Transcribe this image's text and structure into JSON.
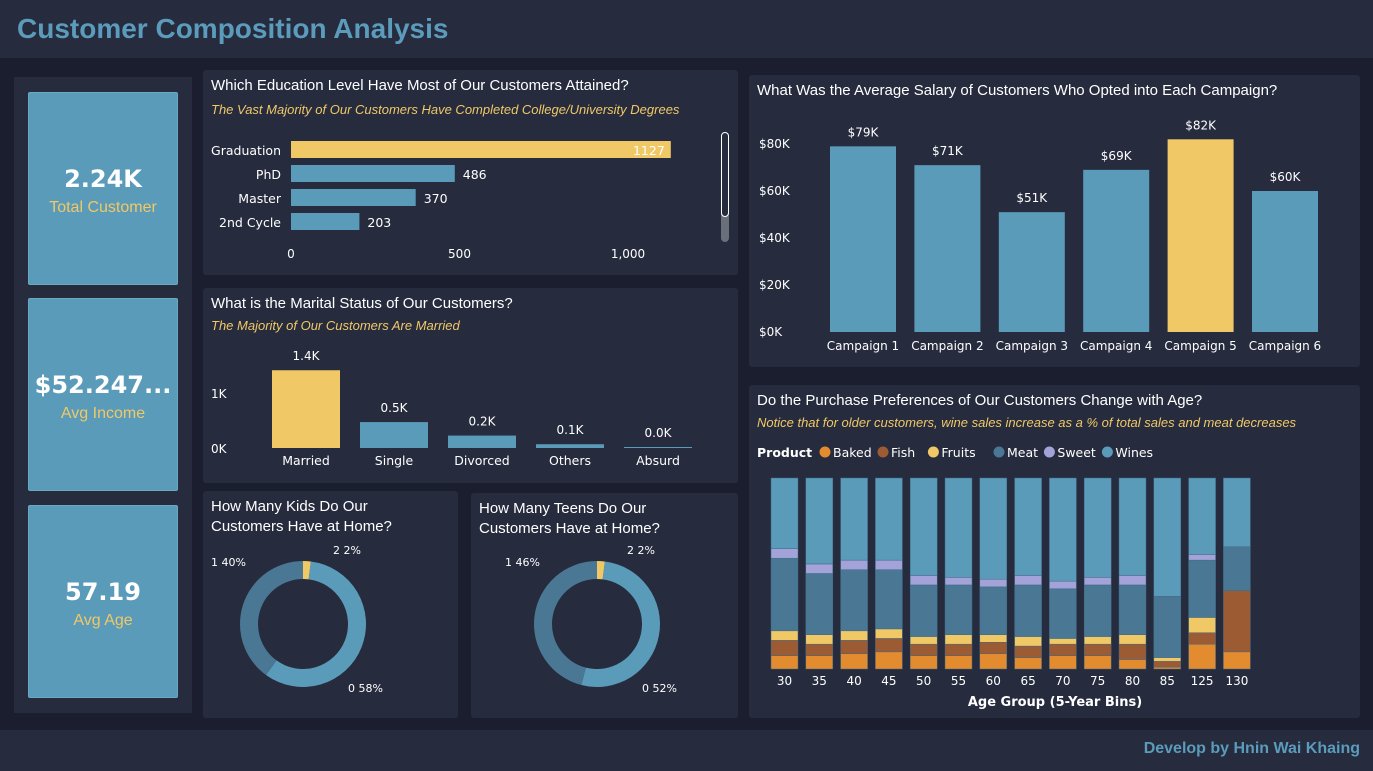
{
  "header": {
    "title": "Customer Composition Analysis"
  },
  "footer": {
    "credit": "Develop by Hnin Wai Khaing"
  },
  "colors": {
    "background": "#1b1e2f",
    "panel": "#262b3e",
    "blue": "#5b9bba",
    "dark_blue": "#4a7894",
    "yellow": "#f0c866",
    "title_blue": "#5b9bbb"
  },
  "kpis": [
    {
      "value": "2.24K",
      "label": "Total Customer"
    },
    {
      "value": "$52.247...",
      "label": "Avg Income"
    },
    {
      "value": "57.19",
      "label": "Avg Age"
    }
  ],
  "education": {
    "title": "Which Education Level Have Most of Our Customers Attained?",
    "subtitle": "The Vast Majority of Our Customers Have Completed College/University Degrees"
  },
  "marital": {
    "title": "What is the Marital Status of Our Customers?",
    "subtitle": "The Majority of Our Customers Are Married"
  },
  "kids": {
    "title": "How Many Kids Do Our Customers Have at Home?"
  },
  "teens": {
    "title": "How Many Teens Do Our Customers Have at Home?"
  },
  "salary": {
    "title": "What Was the Average Salary of Customers Who Opted into Each Campaign?"
  },
  "purchase": {
    "title": "Do the Purchase Preferences of Our Customers Change with Age?",
    "subtitle": "Notice that for older customers, wine sales increase as a % of total sales and meat decreases",
    "legend_title": "Product"
  },
  "chart_data": [
    {
      "id": "education",
      "type": "bar",
      "orientation": "horizontal",
      "categories": [
        "Graduation",
        "PhD",
        "Master",
        "2nd Cycle"
      ],
      "values": [
        1127,
        486,
        370,
        203
      ],
      "data_labels": [
        "1127",
        "486",
        "370",
        "203"
      ],
      "xlim": [
        0,
        1150
      ],
      "xticks": [
        "0",
        "500",
        "1,000"
      ],
      "xtick_values": [
        0,
        500,
        1000
      ],
      "highlight": "Graduation",
      "scrollbar": true
    },
    {
      "id": "marital",
      "type": "bar",
      "categories": [
        "Married",
        "Single",
        "Divorced",
        "Others",
        "Absurd"
      ],
      "values": [
        1.44,
        0.48,
        0.23,
        0.07,
        0.0
      ],
      "data_labels": [
        "1.4K",
        "0.5K",
        "0.2K",
        "0.1K",
        "0.0K"
      ],
      "yticks": [
        "0K",
        "1K"
      ],
      "ytick_values": [
        0,
        1
      ],
      "highlight": "Married"
    },
    {
      "id": "kids",
      "type": "pie",
      "donut": true,
      "slices": [
        {
          "label": "2",
          "value": 2,
          "text": "2 2%",
          "color": "#f0c866"
        },
        {
          "label": "0",
          "value": 58,
          "text": "0 58%",
          "color": "#5b9bba"
        },
        {
          "label": "1",
          "value": 40,
          "text": "1 40%",
          "color": "#4a7894"
        }
      ]
    },
    {
      "id": "teens",
      "type": "pie",
      "donut": true,
      "slices": [
        {
          "label": "2",
          "value": 2,
          "text": "2 2%",
          "color": "#f0c866"
        },
        {
          "label": "0",
          "value": 52,
          "text": "0 52%",
          "color": "#5b9bba"
        },
        {
          "label": "1",
          "value": 46,
          "text": "1 46%",
          "color": "#4a7894"
        }
      ]
    },
    {
      "id": "salary",
      "type": "bar",
      "categories": [
        "Campaign 1",
        "Campaign 2",
        "Campaign 3",
        "Campaign 4",
        "Campaign 5",
        "Campaign 6"
      ],
      "values": [
        79,
        71,
        51,
        69,
        82,
        60
      ],
      "data_labels": [
        "$79K",
        "$71K",
        "$51K",
        "$69K",
        "$82K",
        "$60K"
      ],
      "yticks": [
        "$0K",
        "$20K",
        "$40K",
        "$60K",
        "$80K"
      ],
      "ytick_values": [
        0,
        20,
        40,
        60,
        80
      ],
      "ylim": [
        0,
        85
      ],
      "highlight": "Campaign 5"
    },
    {
      "id": "purchase",
      "type": "bar",
      "stacked": "percent",
      "xlabel": "Age Group (5-Year Bins)",
      "categories": [
        "30",
        "35",
        "40",
        "45",
        "50",
        "55",
        "60",
        "65",
        "70",
        "75",
        "80",
        "85",
        "125",
        "130"
      ],
      "legend": "top-left",
      "series": [
        {
          "name": "Baked",
          "color": "#e38b2f",
          "values": [
            7,
            7,
            8,
            9,
            7,
            7,
            8,
            6,
            7,
            7,
            5,
            1,
            13,
            9
          ]
        },
        {
          "name": "Fish",
          "color": "#9c5b33",
          "values": [
            8,
            6,
            7,
            7,
            6,
            6,
            6,
            6,
            6,
            6,
            8,
            3,
            6,
            32
          ]
        },
        {
          "name": "Fruits",
          "color": "#f0c866",
          "values": [
            5,
            5,
            5,
            5,
            4,
            5,
            4,
            5,
            3,
            4,
            5,
            2,
            8,
            0
          ]
        },
        {
          "name": "Meat",
          "color": "#4a7894",
          "values": [
            38,
            32,
            32,
            31,
            27,
            26,
            25,
            27,
            26,
            27,
            26,
            32,
            30,
            23
          ]
        },
        {
          "name": "Sweet",
          "color": "#a3a3d9",
          "values": [
            5,
            5,
            5,
            5,
            5,
            4,
            4,
            5,
            4,
            4,
            5,
            0,
            3,
            0
          ]
        },
        {
          "name": "Wines",
          "color": "#5b9bba",
          "values": [
            37,
            45,
            43,
            43,
            51,
            52,
            53,
            51,
            54,
            52,
            51,
            62,
            40,
            36
          ]
        }
      ]
    }
  ]
}
